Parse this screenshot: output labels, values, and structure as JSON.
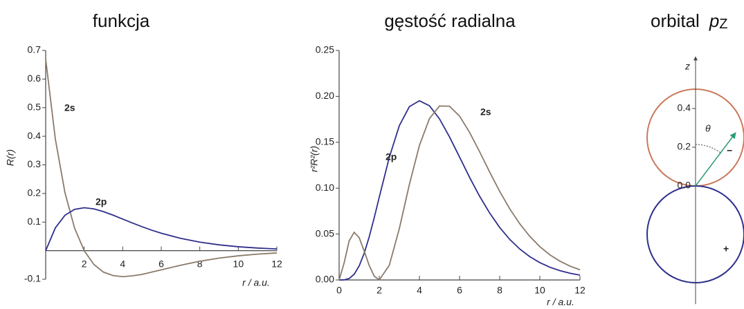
{
  "chart_data": [
    {
      "type": "line",
      "title": "funkcja",
      "y_label": "R(r)",
      "x_label": "r / a.u.",
      "x": [
        0,
        0.5,
        1,
        1.5,
        2,
        2.5,
        3,
        3.5,
        4,
        4.5,
        5,
        5.5,
        6,
        7,
        8,
        9,
        10,
        11,
        12
      ],
      "series": [
        {
          "name": "2s",
          "color": "#8a7a6a",
          "label_color": "#c0392b",
          "values": [
            0.67,
            0.391,
            0.203,
            0.079,
            0,
            -0.048,
            -0.075,
            -0.087,
            -0.091,
            -0.088,
            -0.083,
            -0.075,
            -0.067,
            -0.051,
            -0.037,
            -0.026,
            -0.018,
            -0.012,
            -0.008
          ]
        },
        {
          "name": "2p",
          "color": "#2e2e8c",
          "label_color": "#2e2e8c",
          "values": [
            0,
            0.0795,
            0.1238,
            0.1446,
            0.1502,
            0.1462,
            0.1366,
            0.1242,
            0.1105,
            0.0968,
            0.0838,
            0.0717,
            0.061,
            0.0431,
            0.0299,
            0.0204,
            0.0138,
            0.0092,
            0.0061
          ]
        }
      ],
      "xlim": [
        0,
        12
      ],
      "xticks": [
        2,
        4,
        6,
        8,
        10,
        12
      ],
      "ylim": [
        -0.1,
        0.7
      ],
      "yticks": [
        -0.1,
        0.1,
        0.2,
        0.3,
        0.4,
        0.5,
        0.6,
        0.7
      ]
    },
    {
      "type": "line",
      "title": "gęstość radialna",
      "y_label": "r²R²(r)",
      "x_label": "r / a.u.",
      "x": [
        0,
        0.25,
        0.5,
        0.75,
        1,
        1.25,
        1.5,
        1.75,
        2,
        2.5,
        3,
        3.5,
        4,
        4.5,
        5,
        5.5,
        6,
        6.5,
        7,
        7.5,
        8,
        8.5,
        9,
        9.5,
        10,
        10.5,
        11,
        11.5,
        12
      ],
      "series": [
        {
          "name": "2p",
          "color": "#2e2e8c",
          "label_color": "#2e2e8c",
          "values": [
            0,
            0.000127,
            0.00158,
            0.00623,
            0.01533,
            0.02914,
            0.04706,
            0.0679,
            0.0902,
            0.1336,
            0.1681,
            0.1888,
            0.1952,
            0.1898,
            0.1755,
            0.1558,
            0.1339,
            0.1118,
            0.0912,
            0.0729,
            0.0572,
            0.0442,
            0.0337,
            0.0254,
            0.0189,
            0.0139,
            0.0102,
            0.00736,
            0.0053
          ]
        },
        {
          "name": "2s",
          "color": "#8a7a6a",
          "label_color": "#c0392b",
          "values": [
            0,
            0.01863,
            0.04265,
            0.0519,
            0.046,
            0.03148,
            0.01569,
            0.00416,
            0,
            0.01603,
            0.056,
            0.104,
            0.1465,
            0.1758,
            0.1895,
            0.1893,
            0.1785,
            0.1607,
            0.1397,
            0.1176,
            0.0965,
            0.0775,
            0.0612,
            0.0475,
            0.0363,
            0.0274,
            0.0205,
            0.0151,
            0.0111
          ]
        }
      ],
      "xlim": [
        0,
        12
      ],
      "xticks": [
        0,
        2,
        4,
        6,
        8,
        10,
        12
      ],
      "ylim": [
        0,
        0.25
      ],
      "yticks": [
        {
          "value": 0,
          "label": "0.00"
        },
        {
          "value": 0.05,
          "label": "0.05"
        },
        {
          "value": 0.1,
          "label": "0.10"
        },
        {
          "value": 0.15,
          "label": "0.15"
        },
        {
          "value": 0.2,
          "label": "0.20"
        },
        {
          "value": 0.25,
          "label": "0.25"
        }
      ]
    },
    {
      "type": "orbital",
      "title": "orbital",
      "title_symbol": "p",
      "title_subscript": "Z",
      "axis_label": "z",
      "angle_label": "θ",
      "ylim": [
        -0.5,
        0.5
      ],
      "yticks": [
        {
          "value": 0,
          "label": "0.0"
        },
        0.2,
        0.4
      ],
      "lobes": [
        {
          "sign": "−",
          "color": "#c87a5a"
        },
        {
          "sign": "+",
          "color": "#2e2e8c"
        }
      ],
      "arrow_color": "#2a9a7a"
    }
  ]
}
